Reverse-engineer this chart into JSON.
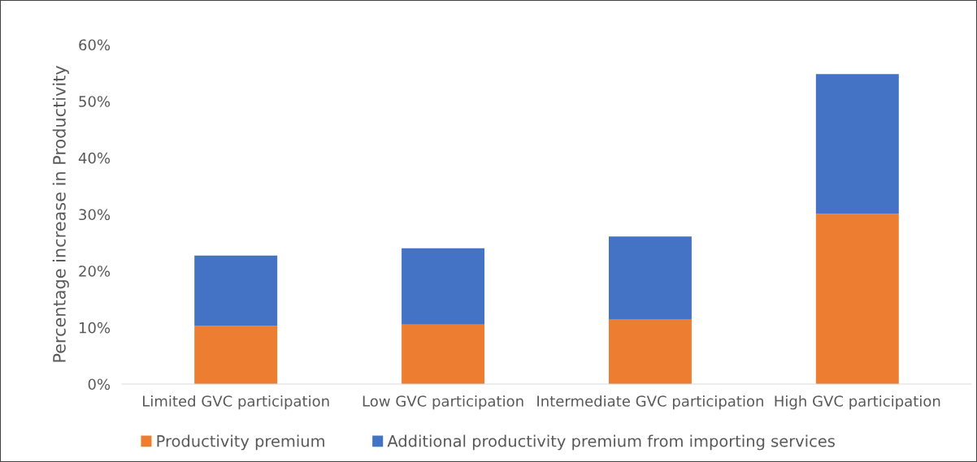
{
  "chart_data": {
    "type": "bar",
    "stacked": true,
    "ylabel": "Percentage increase in Productivity",
    "categories": [
      "Limited GVC participation",
      "Low GVC participation",
      "Intermediate GVC participation",
      "High GVC participation"
    ],
    "series": [
      {
        "name": "Productivity premium",
        "color": "#ed7d31",
        "values": [
          10.3,
          10.5,
          11.5,
          30.1
        ]
      },
      {
        "name": "Additional productivity premium from importing services",
        "color": "#4472c4",
        "values": [
          12.4,
          13.5,
          14.6,
          24.7
        ]
      }
    ],
    "ylim": [
      0,
      60
    ],
    "yticks": [
      {
        "value": 0,
        "label": "0%"
      },
      {
        "value": 10,
        "label": "10%"
      },
      {
        "value": 20,
        "label": "20%"
      },
      {
        "value": 30,
        "label": "30%"
      },
      {
        "value": 40,
        "label": "40%"
      },
      {
        "value": 50,
        "label": "50%"
      },
      {
        "value": 60,
        "label": "60%"
      }
    ],
    "grid": false,
    "legend": "bottom"
  }
}
